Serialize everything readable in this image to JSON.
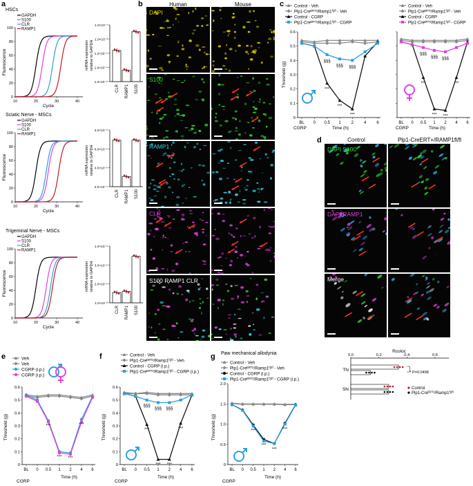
{
  "panel_a": {
    "letter": "a",
    "qpcr_groups": [
      {
        "title": "HSCs",
        "legend": [
          "GAPDH",
          "S100",
          "CLR",
          "RAMP1"
        ],
        "legend_colors": [
          "#000000",
          "#e040e0",
          "#2aa0d8",
          "#c01820"
        ],
        "y_label": "Fluorescence",
        "x_label": "Cycle",
        "x_ticks": [
          "10",
          "20",
          "30",
          "40"
        ],
        "y_ticks": [
          "0",
          "20",
          "40",
          "60",
          "80",
          "100"
        ],
        "bar_y_ticks": [
          "1.0×10⁻⁸",
          "1.6×10⁻⁴",
          "1.2×10⁻⁴",
          "1.0×10⁻³",
          "1.0×10⁻¹"
        ],
        "bar_categories": [
          "CLR",
          "RAMP1",
          "S100"
        ]
      },
      {
        "title": "Sciatic Nerve - MSCs",
        "legend": [
          "GAPDH",
          "S100",
          "CLR",
          "RAMP1"
        ],
        "legend_colors": [
          "#000000",
          "#e040e0",
          "#2aa0d8",
          "#c01820"
        ],
        "y_label": "Fluorescence",
        "x_label": "Cycle",
        "x_ticks": [
          "10",
          "20",
          "30",
          "40"
        ],
        "y_ticks": [
          "0",
          "20",
          "40",
          "60",
          "80",
          "100"
        ],
        "bar_y_ticks": [
          "2.0×10⁻⁴",
          "4.0×10⁻⁶",
          "6.0×10⁻⁶",
          "3.0×10⁻⁶"
        ],
        "bar_categories": [
          "CLR",
          "RAMP1",
          "S100"
        ]
      },
      {
        "title": "Trigeminal Nerve - MSCs",
        "legend": [
          "GAPDH",
          "S100",
          "CLR",
          "RAMP1"
        ],
        "legend_colors": [
          "#000000",
          "#e040e0",
          "#2aa0d8",
          "#c01820"
        ],
        "y_label": "Fluorescence",
        "x_label": "Cycle",
        "x_ticks": [
          "10",
          "20",
          "30",
          "40"
        ],
        "y_ticks": [
          "0",
          "20",
          "40",
          "60",
          "80",
          "100"
        ],
        "bar_y_ticks": [
          "1.0×10⁻²",
          "2.0×10⁻⁶",
          "3.0×10⁻⁶",
          "1.0×10⁻⁶"
        ],
        "bar_categories": [
          "CLR",
          "RAMP1",
          "S100"
        ]
      }
    ],
    "bar_y_label": "mRNA expression relative to GAPDH"
  },
  "panel_b": {
    "letter": "b",
    "col_human": "Human",
    "col_mouse": "Mouse",
    "rows": [
      "DAPI",
      "S100",
      "RAMP1",
      "CLR",
      "S100 RAMP1 CLR"
    ],
    "row_colors": [
      "#e6d800",
      "#30e030",
      "#30d8e8",
      "#e040e0",
      "#ffffff"
    ]
  },
  "panel_c": {
    "letter": "c",
    "legend": [
      "Control - Veh",
      "Plp1-Creᴱᴿᵀ²/Ramp1ᶠˡ/ᶠˡ - Veh",
      "Control - CGRP",
      "Plp1-Creᴱᴿᵀ²/Ramp1ᶠˡ/ᶠˡ - CGRP"
    ],
    "y_label": "Threshold (g)",
    "x_label": "Time (h)",
    "x_ticks": [
      "BL",
      "0",
      "0.5",
      "1",
      "2",
      "4",
      "6"
    ],
    "y_ticks": [
      "0",
      "0.1",
      "0.2",
      "0.3",
      "0.4",
      "0.5",
      "0.6"
    ],
    "cgrp": "CGRP",
    "sig_stars": "***",
    "sig_sections": "§§§"
  },
  "panel_d": {
    "letter": "d",
    "col_control": "Control",
    "col_ko": "Plp1-CreERT+/RAMP1fl/fl",
    "rows": [
      "DAPI S100",
      "DAPI RAMP1",
      "Merge"
    ]
  },
  "panel_e": {
    "letter": "e",
    "legend": [
      "Veh",
      "Veh",
      "CGRP (i.p.)",
      "CGRP (i.p.)"
    ],
    "y_label": "Threshold (g)",
    "x_label": "Time (h)",
    "x_ticks": [
      "BL",
      "0",
      "0.5",
      "1",
      "2",
      "4",
      "6"
    ],
    "y_ticks": [
      "0",
      "0.1",
      "0.2",
      "0.3",
      "0.4",
      "0.5",
      "0.6"
    ],
    "cgrp": "CGRP"
  },
  "panel_f": {
    "letter": "f",
    "legend": [
      "Control - Veh",
      "Plp1-Creᴱᴿᵀ²/Ramp1ᶠˡ/ᶠˡ - Veh",
      "Control - CGRP (i.p.)",
      "Plp1-Creᴱᴿᵀ²/Ramp1ᶠˡ/ᶠˡ - CGRP (i.p.)"
    ],
    "y_label": "Threshold (g)",
    "x_label": "Time (h)",
    "x_ticks": [
      "BL",
      "0",
      "0.5",
      "1",
      "2",
      "4",
      "6"
    ],
    "y_ticks": [
      "0",
      "0.1",
      "0.2",
      "0.3",
      "0.4",
      "0.5",
      "0.6"
    ],
    "cgrp": "CGRP"
  },
  "panel_g": {
    "letter": "g",
    "title": "Paw mechanical allodynia",
    "legend": [
      "Control - Veh",
      "Plp1-Creᴱᴿᵀ²/Ramp1ᶠˡ/ᶠˡ - Veh",
      "Control - CGRP (i.p.)",
      "Plp1-Creᴱᴿᵀ²/Ramp1ᶠˡ/ᶠˡ - CGRP (i.p.)"
    ],
    "y_label": "Threshold (g)",
    "x_label": "Time (h)",
    "x_ticks": [
      "BL",
      "0",
      "0.5",
      "1",
      "2",
      "4",
      "6"
    ],
    "y_ticks": [
      "0",
      "0.5",
      "1.0",
      "1.5",
      "2.0"
    ],
    "cgrp": "CGRP"
  },
  "panel_h": {
    "title": "Rcoloc",
    "x_ticks": [
      "0.0",
      "0.2",
      "0.4",
      "0.6"
    ],
    "rows": [
      "TN",
      "SN"
    ],
    "legend": [
      "Control",
      "Plp1-Creᴱᴿᵀ²/Ramp1ᶠˡ/ᶠˡ"
    ],
    "pvalue": "P=0.0498"
  },
  "colors": {
    "control": "#111111",
    "ko": "#888888",
    "ko_cgrp": "#2aa0e0",
    "female": "#e040e0",
    "red": "#c01820"
  },
  "chart_data": [
    {
      "type": "line",
      "title": "",
      "xlabel": "Time (h)",
      "ylabel": "Threshold (g)",
      "x": [
        "BL",
        "0",
        "0.5",
        "1",
        "2",
        "4",
        "6"
      ],
      "ylim": [
        0,
        0.6
      ],
      "series": [
        {
          "name": "Control - Veh",
          "values": [
            0.54,
            0.53,
            0.54,
            0.54,
            0.54,
            0.54,
            0.54
          ]
        },
        {
          "name": "Plp1-Creᴱᴿᵀ²/Ramp1ᶠˡ/ᶠˡ - Veh",
          "values": [
            0.53,
            0.52,
            0.52,
            0.52,
            0.53,
            0.52,
            0.53
          ]
        },
        {
          "name": "Control - CGRP",
          "values": [
            0.52,
            0.5,
            0.24,
            0.12,
            0.06,
            0.43,
            0.53
          ]
        },
        {
          "name": "Plp1-Creᴱᴿᵀ²/Ramp1ᶠˡ/ᶠˡ - CGRP",
          "values": [
            0.52,
            0.5,
            0.44,
            0.41,
            0.4,
            0.46,
            0.52
          ]
        }
      ]
    },
    {
      "type": "line",
      "title": "",
      "xlabel": "Time (h)",
      "ylabel": "",
      "x": [
        "BL",
        "0",
        "0.5",
        "1",
        "2",
        "4",
        "6"
      ],
      "ylim": [
        0,
        0.6
      ],
      "series": [
        {
          "name": "Control - Veh",
          "values": [
            0.55,
            0.54,
            0.54,
            0.54,
            0.54,
            0.54,
            0.55
          ]
        },
        {
          "name": "Plp1-Creᴱᴿᵀ²/Ramp1ᶠˡ/ᶠˡ - Veh",
          "values": [
            0.54,
            0.53,
            0.53,
            0.53,
            0.53,
            0.53,
            0.54
          ]
        },
        {
          "name": "Control - CGRP",
          "values": [
            0.53,
            0.51,
            0.28,
            0.06,
            0.05,
            0.28,
            0.53
          ]
        },
        {
          "name": "Plp1-Creᴱᴿᵀ²/Ramp1ᶠˡ/ᶠˡ - CGRP",
          "values": [
            0.53,
            0.51,
            0.49,
            0.47,
            0.46,
            0.49,
            0.52
          ]
        }
      ]
    },
    {
      "type": "line",
      "title": "",
      "xlabel": "Time (h)",
      "ylabel": "Threshold (g)",
      "x": [
        "BL",
        "0",
        "0.5",
        "1",
        "2",
        "4",
        "6"
      ],
      "ylim": [
        0,
        0.6
      ],
      "series": [
        {
          "name": "Veh",
          "values": [
            0.54,
            0.53,
            0.54,
            0.54,
            0.53,
            0.52,
            0.54
          ]
        },
        {
          "name": "Veh",
          "values": [
            0.53,
            0.52,
            0.53,
            0.53,
            0.52,
            0.51,
            0.53
          ]
        },
        {
          "name": "CGRP (i.p.)",
          "values": [
            0.54,
            0.5,
            0.34,
            0.1,
            0.09,
            0.35,
            0.53
          ]
        },
        {
          "name": "CGRP (i.p.)",
          "values": [
            0.53,
            0.49,
            0.33,
            0.09,
            0.08,
            0.33,
            0.52
          ]
        }
      ]
    },
    {
      "type": "line",
      "title": "",
      "xlabel": "Time (h)",
      "ylabel": "Threshold (g)",
      "x": [
        "BL",
        "0",
        "0.5",
        "1",
        "2",
        "4",
        "6"
      ],
      "ylim": [
        0,
        0.6
      ],
      "series": [
        {
          "name": "Control - Veh",
          "values": [
            0.56,
            0.55,
            0.56,
            0.55,
            0.55,
            0.55,
            0.55
          ]
        },
        {
          "name": "Plp1-Creᴱᴿᵀ²/Ramp1ᶠˡ/ᶠˡ - Veh",
          "values": [
            0.55,
            0.55,
            0.55,
            0.54,
            0.54,
            0.54,
            0.54
          ]
        },
        {
          "name": "Control - CGRP (i.p.)",
          "values": [
            0.55,
            0.53,
            0.31,
            0.04,
            0.04,
            0.32,
            0.54
          ]
        },
        {
          "name": "Plp1-Creᴱᴿᵀ²/Ramp1ᶠˡ/ᶠˡ - CGRP (i.p.)",
          "values": [
            0.55,
            0.53,
            0.5,
            0.48,
            0.48,
            0.5,
            0.54
          ]
        }
      ]
    },
    {
      "type": "line",
      "title": "Paw mechanical allodynia",
      "xlabel": "Time (h)",
      "ylabel": "Threshold (g)",
      "x": [
        "BL",
        "0",
        "0.5",
        "1",
        "2",
        "4",
        "6"
      ],
      "ylim": [
        0,
        2.0
      ],
      "series": [
        {
          "name": "Control - Veh",
          "values": [
            1.52,
            1.5,
            1.5,
            1.5,
            1.5,
            1.49,
            1.49
          ]
        },
        {
          "name": "Plp1-Creᴱᴿᵀ²/Ramp1ᶠˡ/ᶠˡ - Veh",
          "values": [
            1.51,
            1.49,
            1.49,
            1.49,
            1.49,
            1.48,
            1.48
          ]
        },
        {
          "name": "Control - CGRP (i.p.)",
          "values": [
            1.48,
            1.35,
            0.98,
            0.62,
            0.52,
            1.02,
            1.48
          ]
        },
        {
          "name": "Plp1-Creᴱᴿᵀ²/Ramp1ᶠˡ/ᶠˡ - CGRP (i.p.)",
          "values": [
            1.48,
            1.34,
            0.95,
            0.58,
            0.52,
            1.0,
            1.47
          ]
        }
      ]
    },
    {
      "type": "bar",
      "title": "Rcoloc",
      "categories": [
        "TN",
        "SN"
      ],
      "xlabel": "Rcoloc",
      "ylabel": "",
      "series": [
        {
          "name": "Control",
          "values": [
            0.34,
            0.27
          ]
        },
        {
          "name": "Plp1-Creᴱᴿᵀ²/Ramp1ᶠˡ/ᶠˡ",
          "values": [
            0.14,
            0.27
          ]
        }
      ],
      "ylim": [
        0,
        0.6
      ]
    }
  ]
}
